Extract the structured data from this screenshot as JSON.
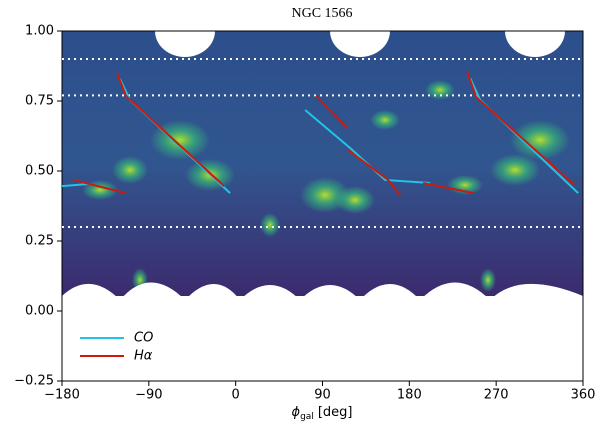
{
  "chart_data": {
    "type": "line",
    "title": "NGC 1566",
    "xlabel": [
      "ϕ",
      "gal",
      "[deg]"
    ],
    "xlim": [
      -180,
      360
    ],
    "ylim": [
      -0.25,
      1.0
    ],
    "xticks": [
      {
        "value": -180,
        "label": "−180"
      },
      {
        "value": -90,
        "label": "−90"
      },
      0,
      90,
      180,
      270,
      360
    ],
    "yticks": [
      {
        "value": -0.25,
        "label": "−0.25"
      },
      {
        "value": 0,
        "label": "0.00"
      },
      0.25,
      {
        "value": 0.5,
        "label": "0.50"
      },
      0.75,
      {
        "value": 1.0,
        "label": "1.00"
      }
    ],
    "hlines": [
      0.9,
      0.77,
      0.3
    ],
    "series": [
      {
        "name": "CO",
        "color": "#22c3e6",
        "x": [
          -180,
          -151,
          null,
          -120,
          -109.5,
          -5.8,
          null,
          72,
          118.6,
          154.9,
          201.6,
          null,
          243,
          253.4,
          355
        ],
        "values": [
          0.446,
          0.454,
          null,
          0.829,
          0.754,
          0.421,
          null,
          0.718,
          0.582,
          0.468,
          0.457,
          null,
          0.832,
          0.754,
          0.421
        ]
      },
      {
        "name": "Hα",
        "color": "#cc1a0e",
        "x": [
          -168.6,
          -113.6,
          null,
          -123,
          -113.6,
          -12,
          null,
          83.3,
          115.5,
          null,
          116.5,
          158,
          170.5,
          null,
          194.3,
          247,
          null,
          240,
          249.3,
          351
        ],
        "values": [
          0.468,
          0.421,
          null,
          0.85,
          0.768,
          0.446,
          null,
          0.768,
          0.654,
          null,
          0.575,
          0.468,
          0.414,
          null,
          0.457,
          0.421,
          null,
          0.854,
          0.764,
          0.45
        ]
      }
    ]
  }
}
